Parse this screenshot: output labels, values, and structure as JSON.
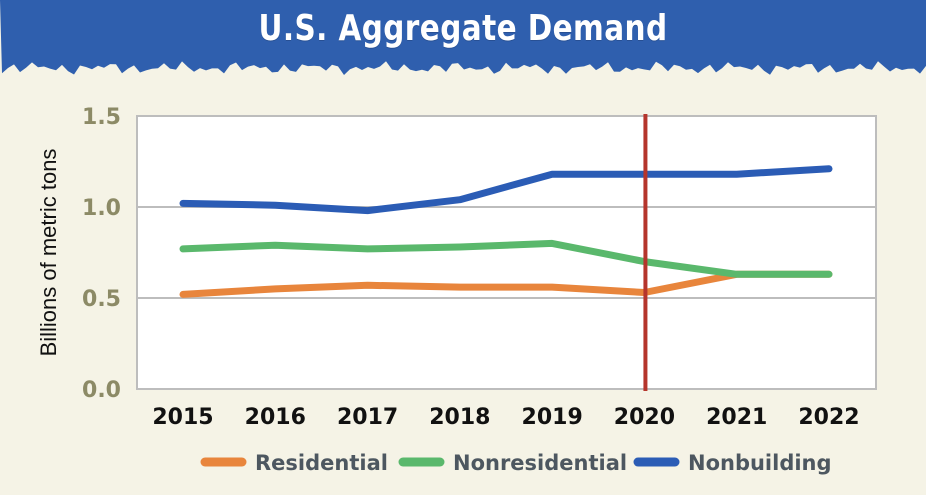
{
  "header": {
    "title": "U.S. Aggregate Demand"
  },
  "colors": {
    "banner": "#2f5fae",
    "background": "#f5f3e6",
    "plot_background": "#ffffff",
    "marker_line": "#b5352c"
  },
  "chart_data": {
    "type": "line",
    "title": "U.S. Aggregate Demand",
    "xlabel": "",
    "ylabel": "Billions of metric tons",
    "ylim": [
      0,
      1.5
    ],
    "y_ticks": [
      "0.0",
      "0.5",
      "1.0",
      "1.5"
    ],
    "y_tick_values": [
      0,
      0.5,
      1.0,
      1.5
    ],
    "categories": [
      "2015",
      "2016",
      "2017",
      "2018",
      "2019",
      "2020",
      "2021",
      "2022"
    ],
    "vertical_marker": "2020",
    "grid": "horizontal",
    "legend_position": "bottom",
    "series": [
      {
        "name": "Residential",
        "color": "#e8853c",
        "values": [
          0.52,
          0.55,
          0.57,
          0.56,
          0.56,
          0.53,
          0.63,
          0.63
        ]
      },
      {
        "name": "Nonresidential",
        "color": "#5ab86c",
        "values": [
          0.77,
          0.79,
          0.77,
          0.78,
          0.8,
          0.7,
          0.63,
          0.63
        ]
      },
      {
        "name": "Nonbuilding",
        "color": "#2b5cb5",
        "values": [
          1.02,
          1.01,
          0.98,
          1.04,
          1.18,
          1.18,
          1.18,
          1.21
        ]
      }
    ]
  }
}
